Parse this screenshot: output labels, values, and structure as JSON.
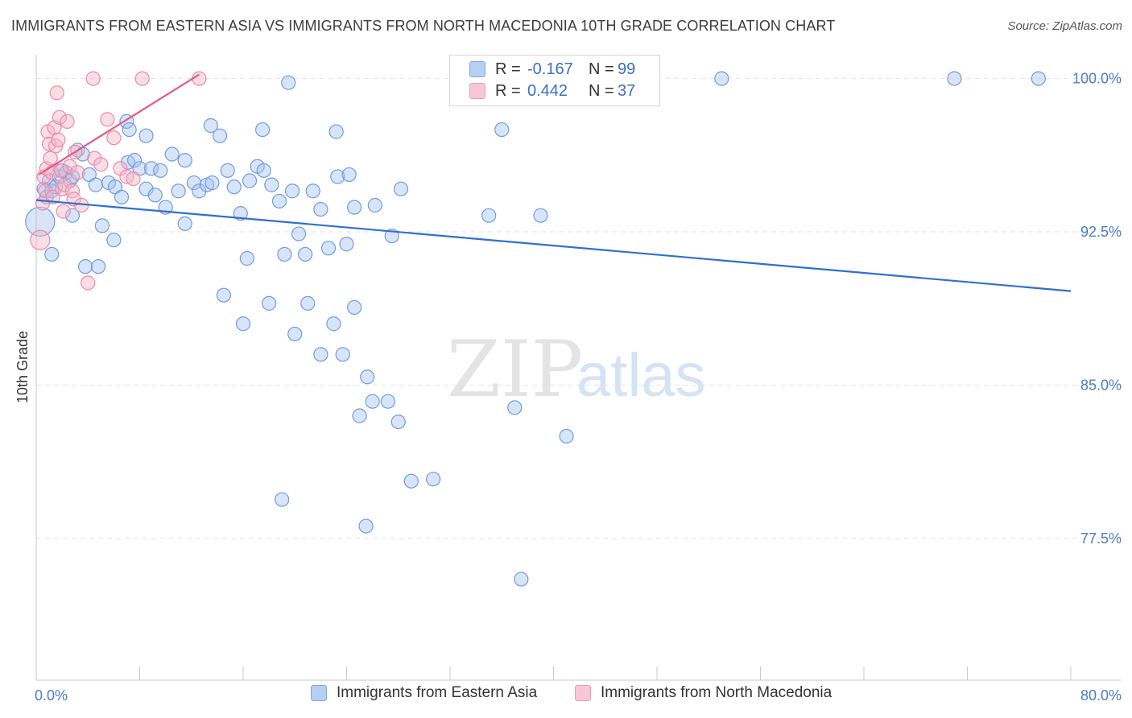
{
  "title": "IMMIGRANTS FROM EASTERN ASIA VS IMMIGRANTS FROM NORTH MACEDONIA 10TH GRADE CORRELATION CHART",
  "source": "Source: ZipAtlas.com",
  "watermark": {
    "zip": "ZIP",
    "atlas": "atlas"
  },
  "legend": {
    "rows": [
      {
        "r_label": "R =",
        "r_value": "-0.167",
        "n_label": "N =",
        "n_value": "99"
      },
      {
        "r_label": "R =",
        "r_value": "0.442",
        "n_label": "N =",
        "n_value": "37"
      }
    ]
  },
  "bottom_legend": [
    "Immigrants from Eastern Asia",
    "Immigrants from North Macedonia"
  ],
  "colors": {
    "blue_fill": "#a9c4ee",
    "blue_stroke": "#6f9ce0",
    "blue_line": "#2f6fd0",
    "pink_fill": "#f5b5c8",
    "pink_stroke": "#ee88a8",
    "pink_line": "#e45a86",
    "grid": "#e3e3e3",
    "tick_text": "#4a7cc9"
  },
  "chart_data": {
    "type": "scatter",
    "title": "IMMIGRANTS FROM EASTERN ASIA VS IMMIGRANTS FROM NORTH MACEDONIA 10TH GRADE CORRELATION CHART",
    "xlabel": "",
    "ylabel": "10th Grade",
    "xlim": [
      0,
      80
    ],
    "ylim": [
      71.0,
      101.5
    ],
    "x_tick_labels": [
      "0.0%",
      "80.0%"
    ],
    "y_ticks": [
      100.0,
      92.5,
      85.0,
      77.5
    ],
    "y_tick_labels": [
      "100.0%",
      "92.5%",
      "85.0%",
      "77.5%"
    ],
    "grid": true,
    "legend_position": "top-center",
    "series": [
      {
        "name": "Immigrants from Eastern Asia",
        "color": "#6f9ce0",
        "trend": {
          "x": [
            0,
            80
          ],
          "y": [
            94.05,
            89.6
          ]
        },
        "points": [
          [
            0.3,
            93.0
          ],
          [
            0.6,
            94.6
          ],
          [
            0.8,
            94.2
          ],
          [
            1.0,
            95.0
          ],
          [
            1.2,
            94.5
          ],
          [
            1.5,
            94.7
          ],
          [
            1.8,
            95.2
          ],
          [
            2.0,
            95.5
          ],
          [
            2.3,
            95.4
          ],
          [
            2.6,
            95.0
          ],
          [
            2.8,
            95.2
          ],
          [
            3.2,
            96.5
          ],
          [
            3.6,
            96.3
          ],
          [
            4.1,
            95.3
          ],
          [
            4.6,
            94.8
          ],
          [
            5.1,
            92.8
          ],
          [
            5.6,
            94.9
          ],
          [
            6.1,
            94.7
          ],
          [
            6.6,
            94.2
          ],
          [
            7.1,
            95.9
          ],
          [
            7.6,
            96.0
          ],
          [
            8.0,
            95.6
          ],
          [
            8.5,
            94.6
          ],
          [
            8.9,
            95.6
          ],
          [
            9.2,
            94.3
          ],
          [
            9.6,
            95.5
          ],
          [
            10.0,
            93.7
          ],
          [
            10.5,
            96.3
          ],
          [
            11.0,
            94.5
          ],
          [
            11.5,
            92.9
          ],
          [
            12.2,
            94.9
          ],
          [
            12.6,
            94.5
          ],
          [
            13.2,
            94.8
          ],
          [
            13.6,
            94.9
          ],
          [
            14.2,
            97.2
          ],
          [
            14.8,
            95.5
          ],
          [
            15.3,
            94.7
          ],
          [
            15.8,
            93.4
          ],
          [
            16.5,
            95.0
          ],
          [
            17.1,
            95.7
          ],
          [
            17.6,
            95.5
          ],
          [
            18.2,
            94.8
          ],
          [
            18.8,
            94.0
          ],
          [
            19.2,
            91.4
          ],
          [
            19.8,
            94.5
          ],
          [
            20.3,
            92.4
          ],
          [
            20.8,
            91.4
          ],
          [
            21.4,
            94.5
          ],
          [
            22.0,
            93.6
          ],
          [
            22.6,
            91.7
          ],
          [
            23.3,
            95.2
          ],
          [
            24.2,
            95.3
          ],
          [
            24.6,
            93.7
          ],
          [
            26.2,
            93.8
          ],
          [
            28.2,
            94.6
          ],
          [
            1.2,
            91.4
          ],
          [
            2.8,
            93.3
          ],
          [
            3.8,
            90.8
          ],
          [
            4.8,
            90.8
          ],
          [
            6.0,
            92.1
          ],
          [
            7.0,
            97.9
          ],
          [
            7.2,
            97.5
          ],
          [
            8.5,
            97.2
          ],
          [
            11.5,
            96.0
          ],
          [
            13.5,
            97.7
          ],
          [
            17.5,
            97.5
          ],
          [
            19.5,
            99.8
          ],
          [
            23.2,
            97.4
          ],
          [
            27.5,
            92.3
          ],
          [
            16.3,
            91.2
          ],
          [
            14.5,
            89.4
          ],
          [
            16.0,
            88.0
          ],
          [
            18.0,
            89.0
          ],
          [
            20.0,
            87.5
          ],
          [
            21.0,
            89.0
          ],
          [
            23.0,
            88.0
          ],
          [
            24.0,
            91.9
          ],
          [
            24.6,
            88.8
          ],
          [
            22.0,
            86.5
          ],
          [
            23.7,
            86.5
          ],
          [
            25.6,
            85.4
          ],
          [
            26.0,
            84.2
          ],
          [
            27.2,
            84.2
          ],
          [
            28.0,
            83.2
          ],
          [
            29.0,
            80.3
          ],
          [
            30.7,
            80.4
          ],
          [
            19.0,
            79.4
          ],
          [
            25.0,
            83.5
          ],
          [
            37.0,
            83.9
          ],
          [
            41.0,
            82.5
          ],
          [
            37.5,
            75.5
          ],
          [
            25.5,
            78.1
          ],
          [
            36.5,
            99.8
          ],
          [
            53.0,
            100.0
          ],
          [
            71.0,
            100.0
          ],
          [
            77.5,
            100.0
          ],
          [
            36.0,
            97.5
          ],
          [
            35.0,
            93.3
          ],
          [
            39.0,
            93.3
          ]
        ]
      },
      {
        "name": "Immigrants from North Macedonia",
        "color": "#ee88a8",
        "trend": {
          "x": [
            0.2,
            12.6
          ],
          "y": [
            95.3,
            100.2
          ]
        },
        "points": [
          [
            0.3,
            92.1
          ],
          [
            0.5,
            93.9
          ],
          [
            0.6,
            95.2
          ],
          [
            0.7,
            94.5
          ],
          [
            0.8,
            95.6
          ],
          [
            0.9,
            97.4
          ],
          [
            1.0,
            96.8
          ],
          [
            1.1,
            96.1
          ],
          [
            1.2,
            95.4
          ],
          [
            1.3,
            94.2
          ],
          [
            1.4,
            97.6
          ],
          [
            1.5,
            96.7
          ],
          [
            1.6,
            99.3
          ],
          [
            1.7,
            97.0
          ],
          [
            1.8,
            98.1
          ],
          [
            1.9,
            95.5
          ],
          [
            2.0,
            94.6
          ],
          [
            2.1,
            93.5
          ],
          [
            2.2,
            94.8
          ],
          [
            2.4,
            97.9
          ],
          [
            2.6,
            95.7
          ],
          [
            2.8,
            94.5
          ],
          [
            3.0,
            96.4
          ],
          [
            3.2,
            95.4
          ],
          [
            2.9,
            94.1
          ],
          [
            3.5,
            93.8
          ],
          [
            4.0,
            90.0
          ],
          [
            4.5,
            96.1
          ],
          [
            5.0,
            95.8
          ],
          [
            5.5,
            98.0
          ],
          [
            6.0,
            97.1
          ],
          [
            6.5,
            95.6
          ],
          [
            7.0,
            95.2
          ],
          [
            7.5,
            95.1
          ],
          [
            4.4,
            100.0
          ],
          [
            8.2,
            100.0
          ],
          [
            12.6,
            100.0
          ]
        ]
      }
    ]
  }
}
